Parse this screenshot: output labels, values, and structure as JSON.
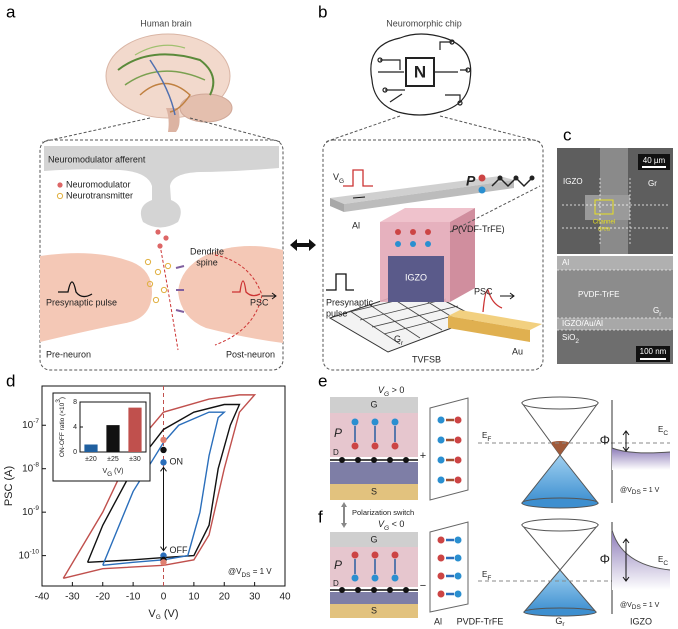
{
  "panel_labels": [
    "a",
    "b",
    "c",
    "d",
    "e",
    "f"
  ],
  "panel_a": {
    "title": "Human brain",
    "afferent": "Neuromodulator afferent",
    "legend": [
      "Neuromodulator",
      "Neurotransmitter"
    ],
    "dendrite": [
      "Dendrite",
      "spine"
    ],
    "presynaptic": "Presynaptic pulse",
    "psc": "PSC",
    "pre": "Pre-neuron",
    "post": "Post-neuron"
  },
  "panel_b": {
    "title": "Neuromorphic chip",
    "chip": "N",
    "vg": [
      "V",
      "G"
    ],
    "al": "Al",
    "p": "P",
    "pvdf": [
      "P",
      "(VDF-TrFE)"
    ],
    "igzo": "IGZO",
    "presynaptic": [
      "Presynaptic",
      "pulse"
    ],
    "psc": "PSC",
    "gr": [
      "G",
      "r"
    ],
    "tvfsb": "TVFSB",
    "au": "Au"
  },
  "panel_c": {
    "scale_top": "40 µm",
    "igzo": "IGZO",
    "gr": "Gr",
    "channel": [
      "Channel",
      "area"
    ],
    "al": "Al",
    "pvdf": "PVDF-TrFE",
    "gr2": [
      "G",
      "r"
    ],
    "stack": "IGZO/Au/Al",
    "sio2": [
      "SiO",
      "2"
    ],
    "scale_bottom": "100 nm"
  },
  "chart_data": [
    {
      "type": "line",
      "xlabel": [
        "V",
        "G",
        " (V)"
      ],
      "ylabel": "PSC (A)",
      "xlim": [
        -40,
        40
      ],
      "xticks": [
        -40,
        -30,
        -20,
        -10,
        0,
        10,
        20,
        30,
        40
      ],
      "ylim": [
        2e-11,
        8e-07
      ],
      "log_y": true,
      "yticks": [
        {
          "value": 1e-10,
          "label": "10",
          "exponent": "-10"
        },
        {
          "value": 1e-09,
          "label": "10",
          "exponent": "-9"
        },
        {
          "value": 1e-08,
          "label": "10",
          "exponent": "-8"
        },
        {
          "value": 1e-07,
          "label": "10",
          "exponent": "-7"
        }
      ],
      "zero_line": {
        "x": 0,
        "color": "#c0504d"
      },
      "series": [
        {
          "color": "#c0504d",
          "x": [
            -33,
            -20,
            0,
            10,
            15,
            20,
            25,
            30,
            25,
            15,
            0,
            -10,
            -20,
            -33
          ],
          "values": [
            3e-11,
            5e-11,
            6e-11,
            8e-11,
            3e-10,
            1e-08,
            2e-07,
            5e-07,
            5e-07,
            4e-07,
            2e-07,
            3e-08,
            1e-09,
            3e-11
          ]
        },
        {
          "color": "#111111",
          "x": [
            -25,
            -10,
            0,
            10,
            15,
            18,
            22,
            25,
            20,
            10,
            0,
            -10,
            -20,
            -25
          ],
          "values": [
            7e-11,
            8e-11,
            9e-11,
            1e-10,
            5e-10,
            1e-08,
            1e-07,
            3e-07,
            3e-07,
            2e-07,
            8e-08,
            1e-08,
            5e-10,
            7e-11
          ]
        },
        {
          "color": "#2a6ebb",
          "x": [
            -20,
            -10,
            0,
            8,
            12,
            15,
            18,
            20,
            15,
            5,
            0,
            -10,
            -20
          ],
          "values": [
            6e-11,
            7e-11,
            8e-11,
            1e-10,
            1e-09,
            2e-08,
            1.5e-07,
            2e-07,
            2e-07,
            1e-07,
            4e-08,
            3e-09,
            6e-11
          ]
        }
      ],
      "markers": {
        "x": [
          0,
          0,
          0,
          0,
          0,
          0
        ],
        "values": [
          4.6e-08,
          2.7e-08,
          1.4e-08,
          1e-10,
          8e-11,
          7e-11
        ],
        "colors": [
          "#e08070",
          "#111111",
          "#2a6ebb",
          "#2a6ebb",
          "#111111",
          "#e08070"
        ]
      },
      "annotations": {
        "on": "ON",
        "off": "OFF",
        "bias": [
          "@V",
          "DS",
          " = 1 V"
        ]
      }
    },
    {
      "type": "bar",
      "ylabel": [
        "ON-OFF ratio (×10",
        "3",
        ")"
      ],
      "xlabel": [
        "V",
        "G",
        " (V)"
      ],
      "categories": [
        "±20",
        "±25",
        "±30"
      ],
      "values": [
        1.2,
        4.3,
        7.1
      ],
      "colors": [
        "#1f5f9f",
        "#111111",
        "#c0504d"
      ],
      "ylim": [
        0,
        8
      ],
      "yticks": [
        0,
        4,
        8
      ]
    }
  ],
  "panel_e": {
    "vg": [
      "V",
      "G",
      " > 0"
    ],
    "g": "G",
    "p": "P",
    "d": "D",
    "s": "S",
    "sign": "+",
    "ef": [
      "E",
      "F"
    ],
    "phi": "Φ",
    "ec": [
      "E",
      "C"
    ],
    "bias": [
      "@V",
      "DS",
      " = 1 V"
    ]
  },
  "panel_f": {
    "switch": "Polarization switch",
    "vg": [
      "V",
      "G",
      " < 0"
    ],
    "g": "G",
    "p": "P",
    "d": "D",
    "s": "S",
    "sign": "−",
    "ef": [
      "E",
      "F"
    ],
    "phi": "Φ",
    "ec": [
      "E",
      "C"
    ],
    "bias": [
      "@V",
      "DS",
      " = 1 V"
    ]
  },
  "bottom_labels": {
    "al": "Al",
    "pvdf": "PVDF-TrFE",
    "gr": [
      "G",
      "r"
    ],
    "igzo": "IGZO"
  }
}
